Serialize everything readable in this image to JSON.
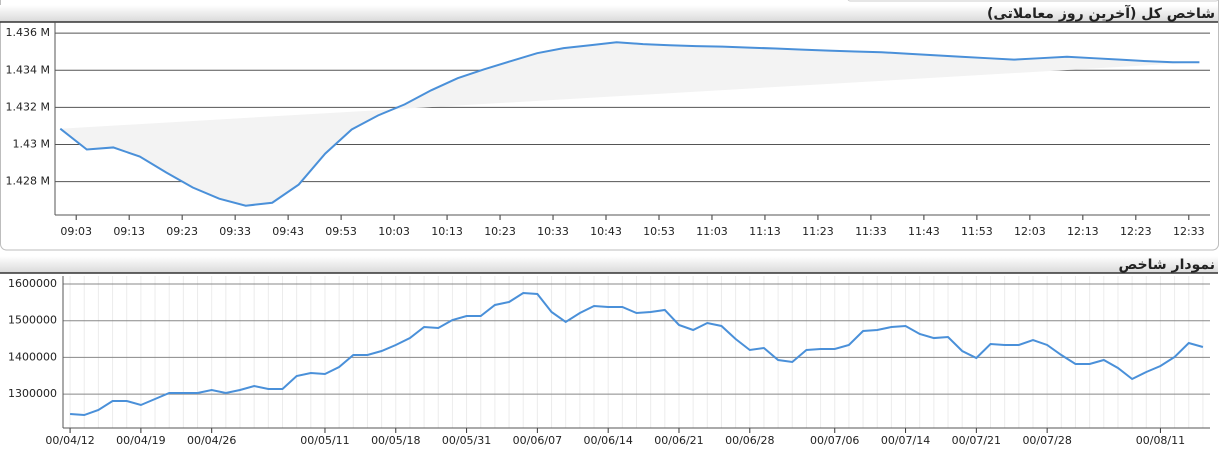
{
  "chart_data": [
    {
      "type": "line",
      "title": "شاخص کل (آخرین روز معاملاتی)",
      "x": [
        "09:00",
        "09:05",
        "09:10",
        "09:15",
        "09:20",
        "09:25",
        "09:30",
        "09:35",
        "09:40",
        "09:45",
        "09:50",
        "09:55",
        "10:00",
        "10:05",
        "10:10",
        "10:15",
        "10:20",
        "10:25",
        "10:30",
        "10:35",
        "10:40",
        "10:45",
        "10:50",
        "10:55",
        "11:00",
        "11:05",
        "11:10",
        "11:15",
        "11:20",
        "11:25",
        "11:30",
        "11:35",
        "11:40",
        "11:45",
        "11:50",
        "11:55",
        "12:00",
        "12:05",
        "12:10",
        "12:15",
        "12:20",
        "12:25",
        "12:30",
        "12:35"
      ],
      "xlim": [
        "08:59",
        "12:37"
      ],
      "xticks": [
        "09:03",
        "09:13",
        "09:23",
        "09:33",
        "09:43",
        "09:53",
        "10:03",
        "10:13",
        "10:23",
        "10:33",
        "10:43",
        "10:53",
        "11:03",
        "11:13",
        "11:23",
        "11:33",
        "11:43",
        "11:53",
        "12:03",
        "12:13",
        "12:23",
        "12:33"
      ],
      "series": [
        {
          "color": "#4a90d9",
          "values": [
            1430850,
            1429730,
            1429840,
            1429350,
            1428490,
            1427680,
            1427080,
            1426700,
            1426860,
            1427840,
            1429510,
            1430810,
            1431570,
            1432160,
            1432920,
            1433570,
            1434050,
            1434490,
            1434920,
            1435190,
            1435350,
            1435510,
            1435410,
            1435350,
            1435300,
            1435270,
            1435220,
            1435170,
            1435110,
            1435060,
            1435010,
            1434970,
            1434890,
            1434810,
            1434730,
            1434650,
            1434570,
            1434650,
            1434730,
            1434650,
            1434570,
            1434490,
            1434430,
            1434430
          ]
        }
      ],
      "area_color": "#f3f3f3",
      "ylim": [
        1426200,
        1436600
      ],
      "yticks": [
        {
          "value": 1428000,
          "label": "1.428 M"
        },
        {
          "value": 1430000,
          "label": "1.43 M"
        },
        {
          "value": 1432000,
          "label": "1.432 M"
        },
        {
          "value": 1434000,
          "label": "1.434 M"
        },
        {
          "value": 1436000,
          "label": "1.436 M"
        }
      ],
      "grid": true
    },
    {
      "type": "line",
      "title": "نمودار شاخص",
      "categories": [
        "00/04/12",
        null,
        null,
        null,
        null,
        "00/04/19",
        null,
        null,
        null,
        null,
        "00/04/26",
        null,
        null,
        null,
        null,
        null,
        null,
        null,
        "00/05/11",
        null,
        null,
        null,
        null,
        "00/05/18",
        null,
        null,
        null,
        null,
        "00/05/31",
        null,
        null,
        null,
        null,
        "00/06/07",
        null,
        null,
        null,
        null,
        "00/06/14",
        null,
        null,
        null,
        null,
        "00/06/21",
        null,
        null,
        null,
        null,
        "00/06/28",
        null,
        null,
        null,
        null,
        null,
        "00/07/06",
        null,
        null,
        null,
        null,
        "00/07/14",
        null,
        null,
        null,
        null,
        "00/07/21",
        null,
        null,
        null,
        null,
        "00/07/28",
        null,
        null,
        null,
        null,
        null,
        null,
        null,
        "00/08/11",
        null,
        null,
        null
      ],
      "series": [
        {
          "color": "#4a90d9",
          "values": [
            1245800,
            1243000,
            1256700,
            1281200,
            1281200,
            1270300,
            1286600,
            1303000,
            1303000,
            1303000,
            1311200,
            1303000,
            1311200,
            1322100,
            1313900,
            1313900,
            1349300,
            1357500,
            1354800,
            1373800,
            1406500,
            1406500,
            1417400,
            1433800,
            1452700,
            1482800,
            1480100,
            1501900,
            1512800,
            1512800,
            1542800,
            1550900,
            1575500,
            1572800,
            1523700,
            1496500,
            1521000,
            1540100,
            1537300,
            1537300,
            1521000,
            1523700,
            1529200,
            1488300,
            1474700,
            1493700,
            1485600,
            1450100,
            1420200,
            1425600,
            1392900,
            1387500,
            1420200,
            1422900,
            1422900,
            1433800,
            1471900,
            1474700,
            1482800,
            1485600,
            1463800,
            1452700,
            1455400,
            1417400,
            1398400,
            1436500,
            1433800,
            1433800,
            1447400,
            1433800,
            1406500,
            1382000,
            1382000,
            1392900,
            1371100,
            1341100,
            1360200,
            1376500,
            1401100,
            1439200,
            1428300
          ]
        }
      ],
      "ylim": [
        1207600,
        1621800
      ],
      "yticks": [
        1300000,
        1400000,
        1500000,
        1600000
      ],
      "grid": true,
      "x_grid": true
    }
  ]
}
